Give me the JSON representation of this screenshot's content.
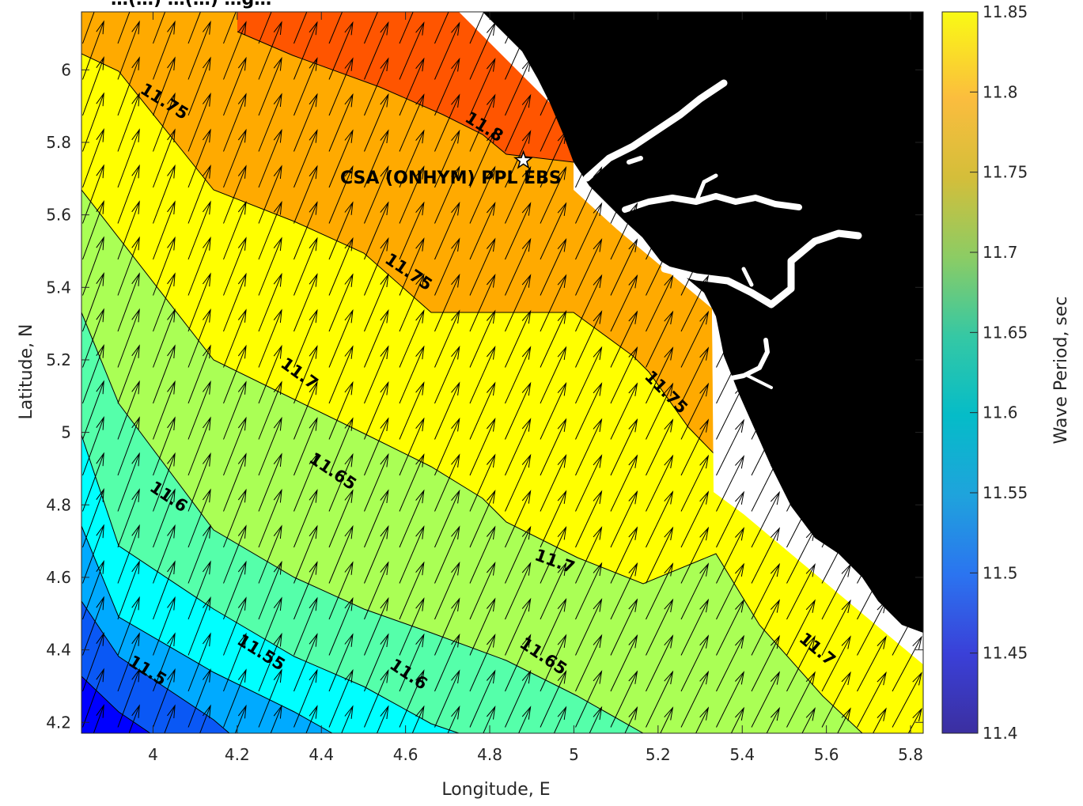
{
  "chart_data": {
    "type": "contour",
    "title": "…(…) …(…) …g…",
    "xlabel": "Longitude, E",
    "ylabel": "Latitude, N",
    "xlim": [
      3.83,
      5.83
    ],
    "ylim": [
      4.17,
      6.16
    ],
    "xticks": [
      "4",
      "4.2",
      "4.4",
      "4.6",
      "4.8",
      "5",
      "5.2",
      "5.4",
      "5.6",
      "5.8"
    ],
    "yticks": [
      "4.2",
      "4.4",
      "4.6",
      "4.8",
      "5",
      "5.2",
      "5.4",
      "5.6",
      "5.8",
      "6"
    ],
    "colorbar": {
      "label": "Wave Period, sec",
      "range": [
        11.4,
        11.85
      ],
      "ticks": [
        "11.4",
        "11.45",
        "11.5",
        "11.55",
        "11.6",
        "11.65",
        "11.7",
        "11.75",
        "11.8",
        "11.85"
      ]
    },
    "bands": [
      {
        "from": 11.45,
        "to": 11.5,
        "color": "#0000ff"
      },
      {
        "from": 11.5,
        "to": 11.55,
        "color": "#0a58f5"
      },
      {
        "from": 11.55,
        "to": 11.6,
        "color": "#00aaff"
      },
      {
        "from": 11.6,
        "to": 11.65,
        "color": "#00ffff"
      },
      {
        "from": 11.65,
        "to": 11.7,
        "color": "#55ffaa"
      },
      {
        "from": 11.7,
        "to": 11.75,
        "color": "#aaff55"
      },
      {
        "from": 11.75,
        "to": 11.8,
        "color": "#ffff00"
      },
      {
        "from": 11.8,
        "to": 11.85,
        "color": "#ffaa00"
      },
      {
        "from": 11.85,
        "to": 11.9,
        "color": "#ff5500"
      }
    ],
    "contour_labels": [
      {
        "text": "11.5",
        "x": 3.98,
        "y": 4.33,
        "angle": 32
      },
      {
        "text": "11.55",
        "x": 4.25,
        "y": 4.38,
        "angle": 32
      },
      {
        "text": "11.6",
        "x": 4.03,
        "y": 4.81,
        "angle": 34
      },
      {
        "text": "11.6",
        "x": 4.6,
        "y": 4.32,
        "angle": 34
      },
      {
        "text": "11.65",
        "x": 4.42,
        "y": 4.88,
        "angle": 34
      },
      {
        "text": "11.65",
        "x": 4.92,
        "y": 4.37,
        "angle": 34
      },
      {
        "text": "11.7",
        "x": 4.34,
        "y": 5.15,
        "angle": 36
      },
      {
        "text": "11.7",
        "x": 4.95,
        "y": 4.63,
        "angle": 20
      },
      {
        "text": "11.7",
        "x": 5.57,
        "y": 4.39,
        "angle": 40
      },
      {
        "text": "11.75",
        "x": 4.02,
        "y": 5.9,
        "angle": 32
      },
      {
        "text": "11.75",
        "x": 4.6,
        "y": 5.43,
        "angle": 34
      },
      {
        "text": "11.75",
        "x": 5.21,
        "y": 5.1,
        "angle": 45
      },
      {
        "text": "11.8",
        "x": 4.78,
        "y": 5.83,
        "angle": 32
      }
    ],
    "site": {
      "name": "CSA (ONHYM) PPL EBS",
      "lon": 4.88,
      "lat": 5.75
    },
    "vectors": "wave direction arrows pointing north-northeast"
  },
  "colors": {
    "land": "#000000",
    "water": "#ffffff",
    "axis": "#262626"
  }
}
